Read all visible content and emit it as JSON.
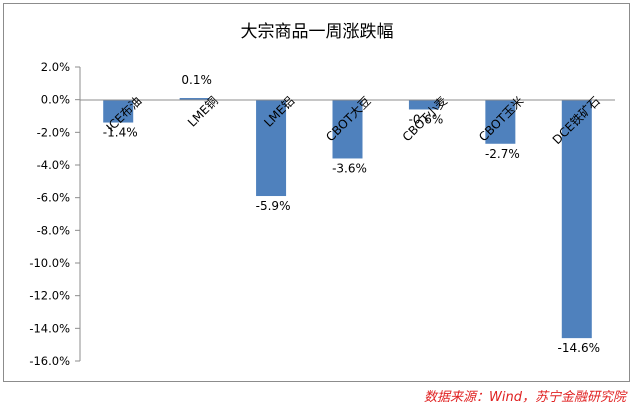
{
  "chart_data": {
    "type": "bar",
    "title": "大宗商品一周涨跌幅",
    "categories": [
      "ICE布油",
      "LME铜",
      "LME铝",
      "CBOT大豆",
      "CBOT小麦",
      "CBOT玉米",
      "DCE铁矿石"
    ],
    "values": [
      -1.4,
      0.1,
      -5.9,
      -3.6,
      -0.6,
      -2.7,
      -14.6
    ],
    "data_labels": [
      "-1.4%",
      "0.1%",
      "-5.9%",
      "-3.6%",
      "-0.6%",
      "-2.7%",
      "-14.6%"
    ],
    "y_ticks": [
      "2.0%",
      "0.0%",
      "-2.0%",
      "-4.0%",
      "-6.0%",
      "-8.0%",
      "-10.0%",
      "-12.0%",
      "-14.0%",
      "-16.0%"
    ],
    "ylim": [
      -16,
      2
    ],
    "xlabel": "",
    "ylabel": "",
    "grid": false,
    "bar_color": "#4f81bd"
  },
  "source": "数据来源：Wind，苏宁金融研究院",
  "colors": {
    "source_text": "#e02020",
    "axis": "#8c8c8c"
  }
}
